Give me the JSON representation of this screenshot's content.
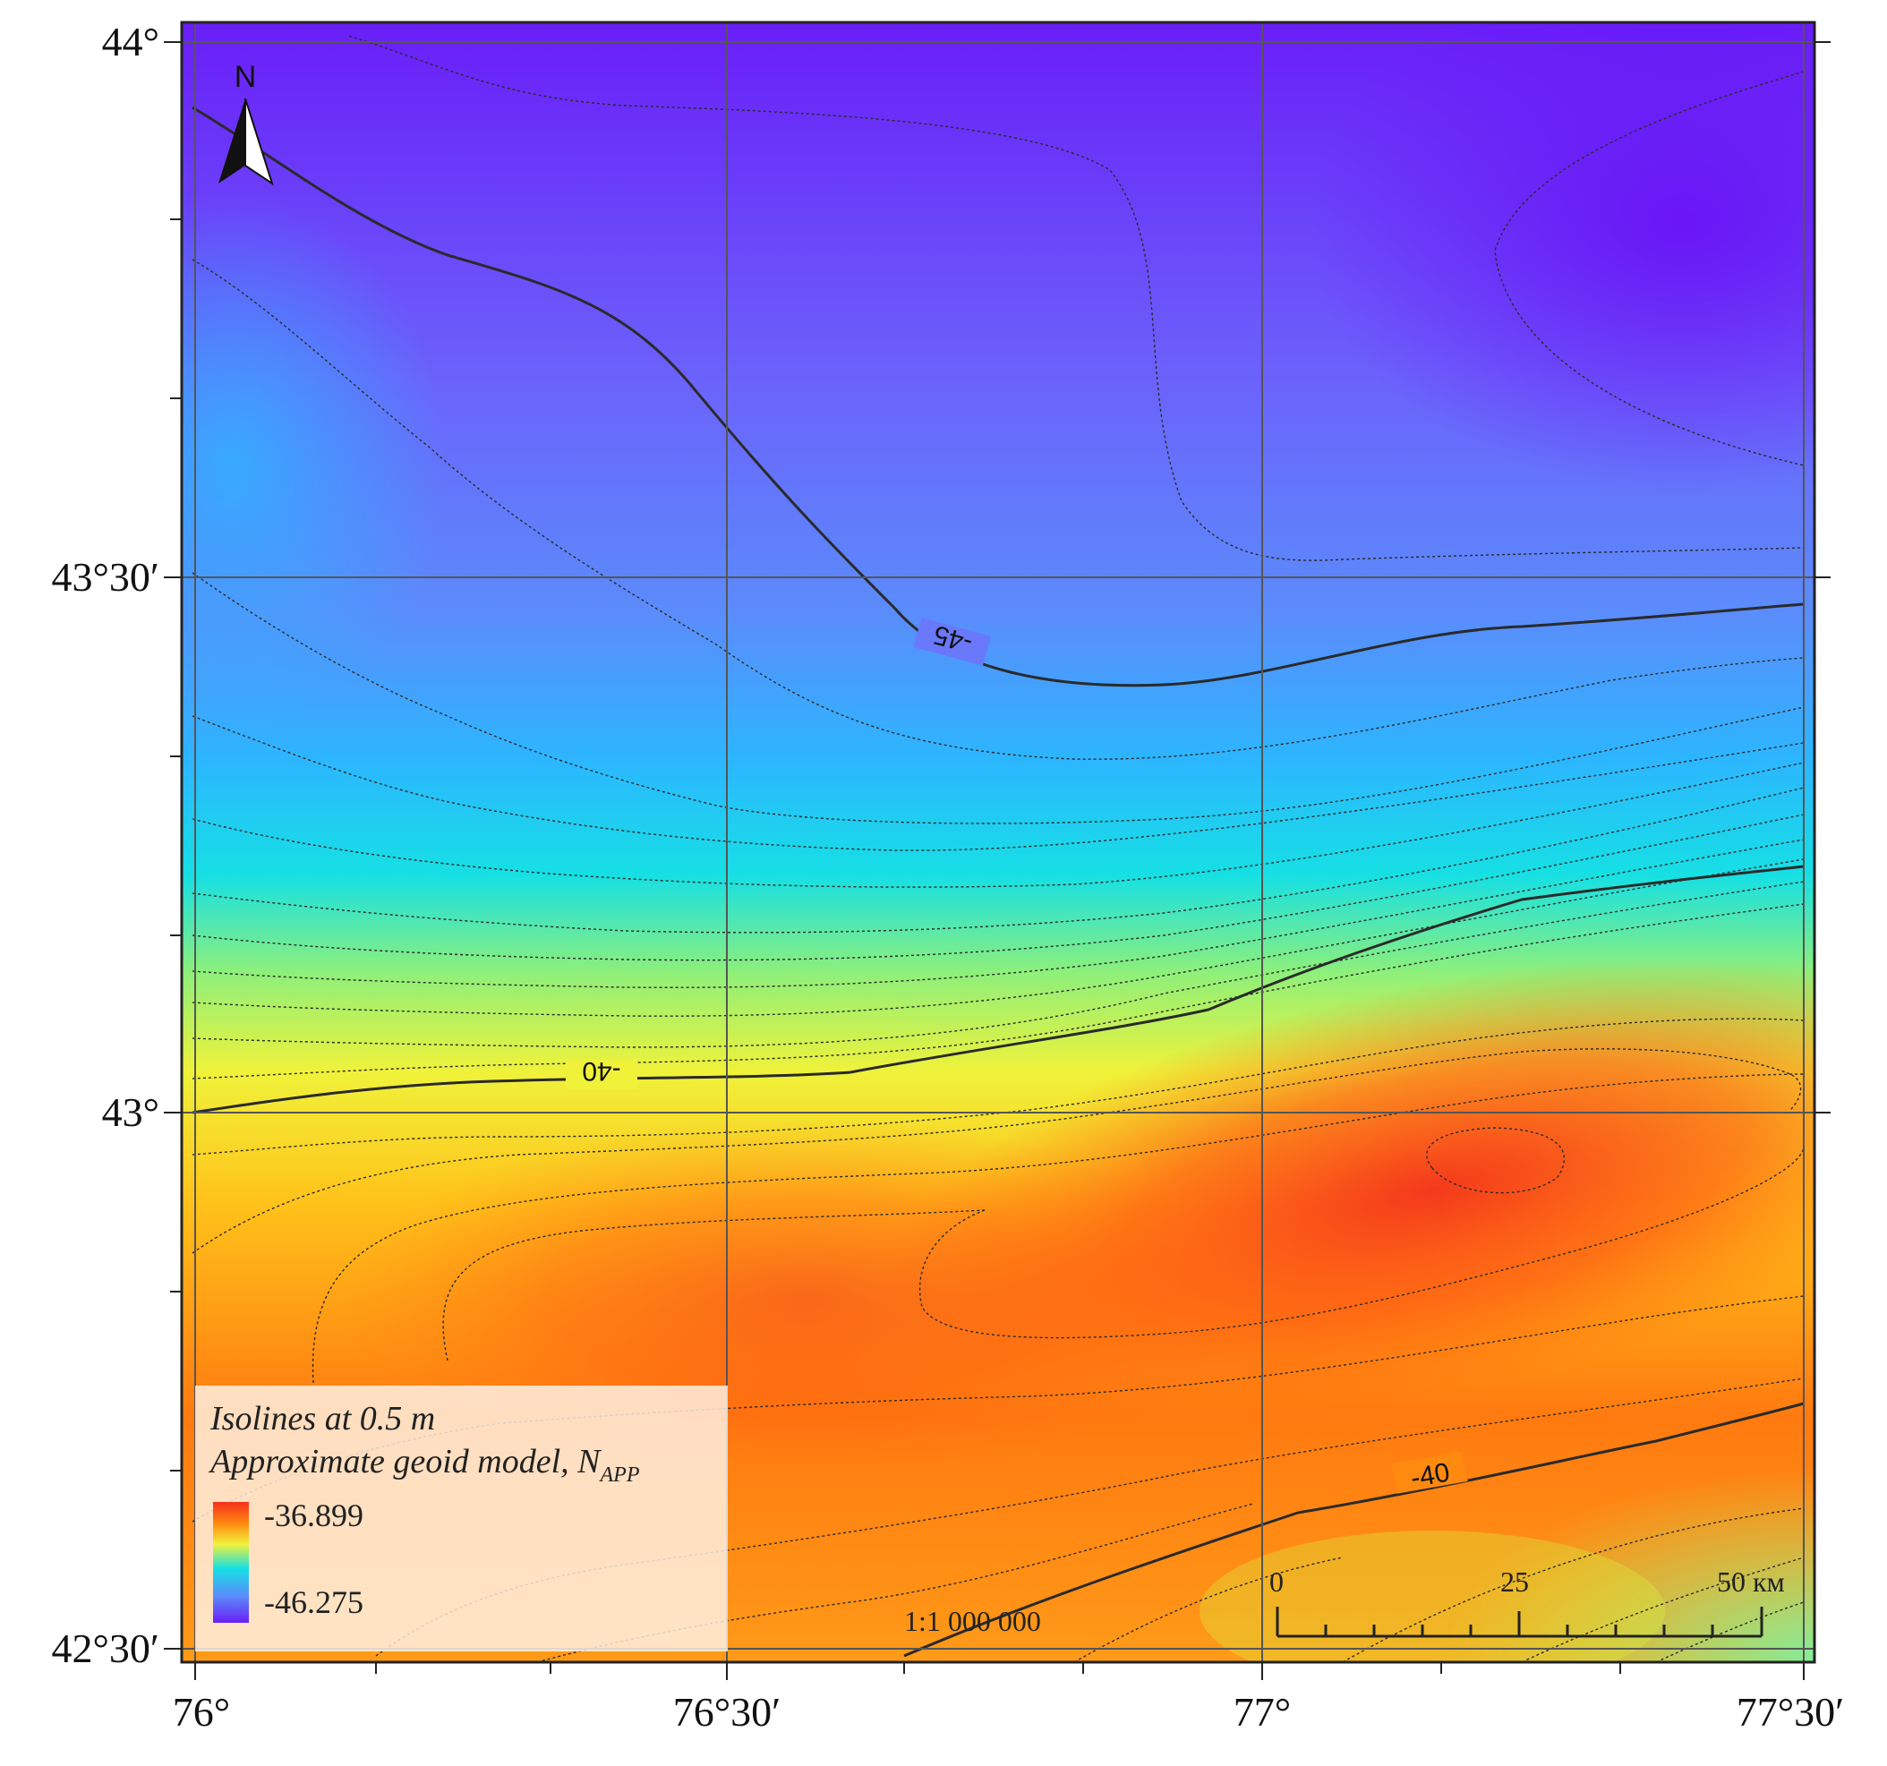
{
  "map": {
    "colors": {
      "ramp": [
        "#6a1ef7",
        "#6b63fb",
        "#5b8cfb",
        "#2cb6ff",
        "#16e0e4",
        "#8ff07a",
        "#f0f23a",
        "#ffc21a",
        "#ff8a10",
        "#ff5a10",
        "#f4311c"
      ],
      "contour": "#2a2a2a",
      "grid": "#555555"
    },
    "axes": {
      "lon_ticks": [
        "76°",
        "76°30′",
        "77°",
        "77°30′"
      ],
      "lat_ticks": [
        "44°",
        "43°30′",
        "43°",
        "42°30′"
      ]
    },
    "north_arrow": {
      "label": "N",
      "icon": "north-arrow-icon"
    },
    "contour_labels": [
      "-45",
      "-40",
      "-40"
    ],
    "legend": {
      "line1": "Isolines at 0.5 m",
      "line2_prefix": "Approximate geoid model, N",
      "line2_sub": "APP",
      "max": "-36.899",
      "min": "-46.275"
    },
    "scale": {
      "ratio": "1:1 000 000",
      "tick0": "0",
      "tick25": "25",
      "tick50": "50 км"
    }
  }
}
